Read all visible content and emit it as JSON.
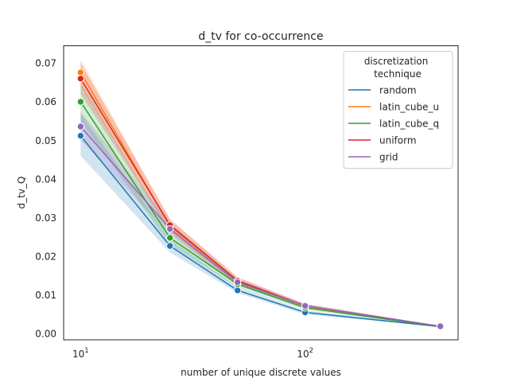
{
  "chart_data": {
    "type": "line",
    "title": "d_tv for co-occurrence",
    "xlabel": "number of unique discrete values",
    "ylabel": "d_tv_Q",
    "xscale": "log",
    "xlim": [
      8.4,
      480
    ],
    "ylim": [
      -0.0016,
      0.0745
    ],
    "x": [
      10,
      25,
      50,
      100,
      400
    ],
    "x_ticks": [
      {
        "value": 10,
        "base": "10",
        "exp": "1"
      },
      {
        "value": 100,
        "base": "10",
        "exp": "2"
      }
    ],
    "y_ticks": [
      {
        "value": 0.0,
        "label": "0.00"
      },
      {
        "value": 0.01,
        "label": "0.01"
      },
      {
        "value": 0.02,
        "label": "0.02"
      },
      {
        "value": 0.03,
        "label": "0.03"
      },
      {
        "value": 0.04,
        "label": "0.04"
      },
      {
        "value": 0.05,
        "label": "0.05"
      },
      {
        "value": 0.06,
        "label": "0.06"
      },
      {
        "value": 0.07,
        "label": "0.07"
      }
    ],
    "grid": false,
    "legend": {
      "title": "discretization\ntechnique",
      "position": "top-right"
    },
    "series": [
      {
        "name": "random",
        "color": "#1f77b4",
        "values": [
          0.0512,
          0.0227,
          0.0112,
          0.0055,
          0.0018
        ],
        "ci_low": [
          0.046,
          0.021,
          0.0105,
          0.005,
          0.0017
        ],
        "ci_high": [
          0.057,
          0.0245,
          0.012,
          0.006,
          0.0019
        ]
      },
      {
        "name": "latin_cube_u",
        "color": "#ff7f0e",
        "values": [
          0.0676,
          0.0278,
          0.0137,
          0.0071,
          0.0019
        ],
        "ci_low": [
          0.064,
          0.026,
          0.0128,
          0.0066,
          0.0018
        ],
        "ci_high": [
          0.071,
          0.0295,
          0.0146,
          0.0076,
          0.002
        ]
      },
      {
        "name": "latin_cube_q",
        "color": "#2ca02c",
        "values": [
          0.06,
          0.0248,
          0.0128,
          0.0067,
          0.0018
        ],
        "ci_low": [
          0.055,
          0.023,
          0.012,
          0.0062,
          0.0017
        ],
        "ci_high": [
          0.065,
          0.0265,
          0.0136,
          0.0072,
          0.0019
        ]
      },
      {
        "name": "uniform",
        "color": "#d62728",
        "values": [
          0.066,
          0.0281,
          0.0137,
          0.0072,
          0.0019
        ],
        "ci_low": [
          0.062,
          0.0265,
          0.0128,
          0.0067,
          0.0018
        ],
        "ci_high": [
          0.07,
          0.0297,
          0.0146,
          0.0077,
          0.002
        ]
      },
      {
        "name": "grid",
        "color": "#9467bd",
        "values": [
          0.0536,
          0.0271,
          0.0133,
          0.0072,
          0.0019
        ],
        "ci_low": [
          0.05,
          0.0255,
          0.0125,
          0.0067,
          0.0018
        ],
        "ci_high": [
          0.0575,
          0.0287,
          0.0141,
          0.0077,
          0.002
        ]
      }
    ]
  }
}
